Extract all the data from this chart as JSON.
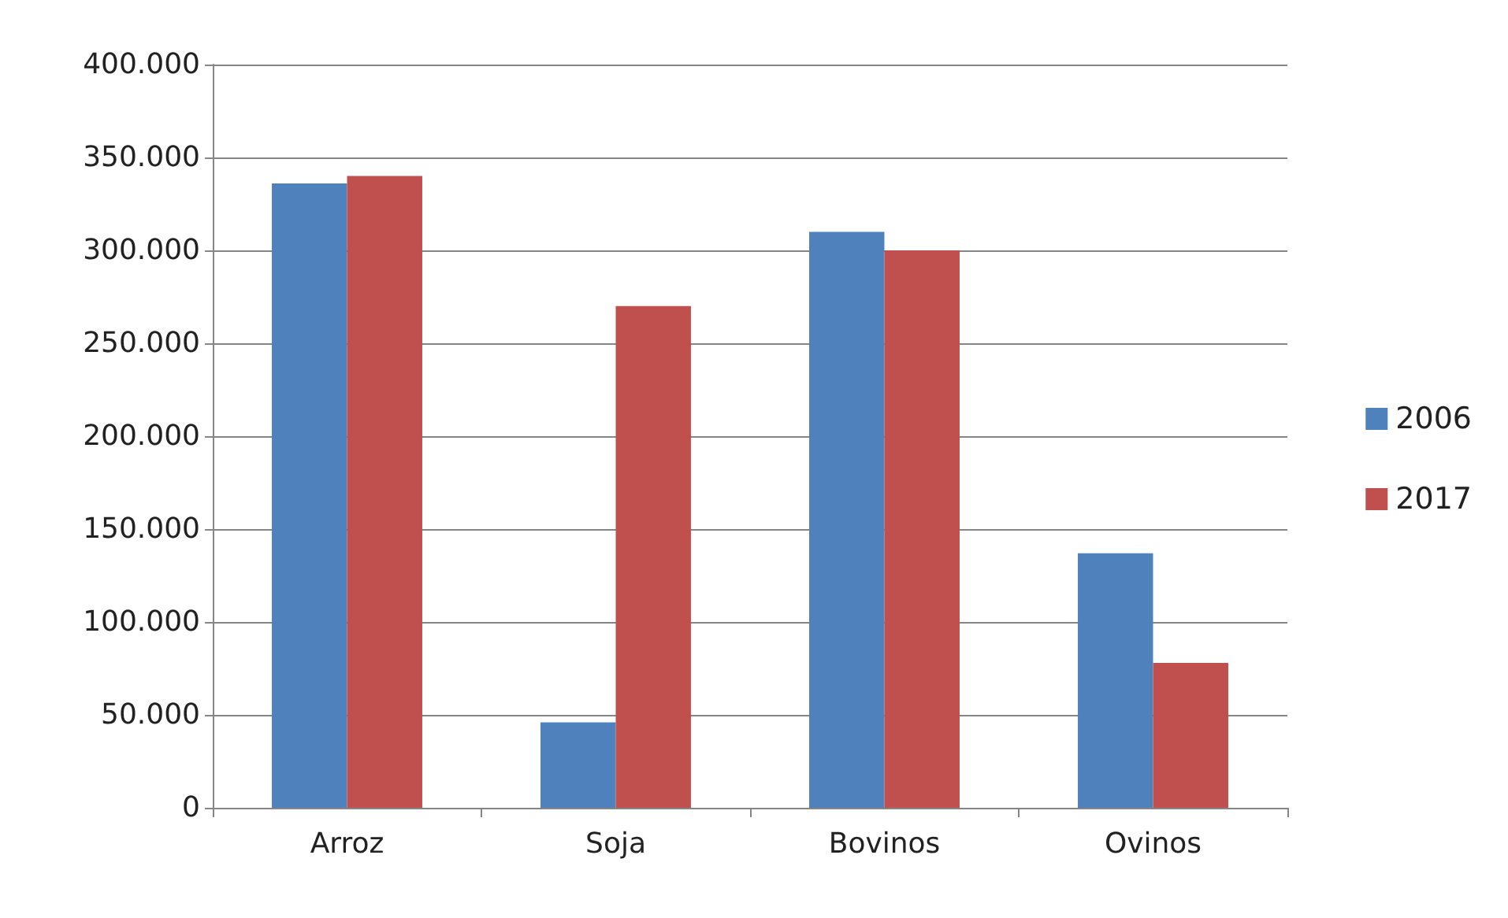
{
  "chart_data": {
    "type": "bar",
    "categories": [
      "Arroz",
      "Soja",
      "Bovinos",
      "Ovinos"
    ],
    "series": [
      {
        "name": "2006",
        "color": "#4f81bd",
        "values": [
          336000,
          46000,
          310000,
          137000
        ]
      },
      {
        "name": "2017",
        "color": "#c0504d",
        "values": [
          340000,
          270000,
          300000,
          78000
        ]
      }
    ],
    "ylim": [
      0,
      400000
    ],
    "yticks": [
      {
        "value": 0,
        "label": "0"
      },
      {
        "value": 50000,
        "label": "50.000"
      },
      {
        "value": 100000,
        "label": "100.000"
      },
      {
        "value": 150000,
        "label": "150.000"
      },
      {
        "value": 200000,
        "label": "200.000"
      },
      {
        "value": 250000,
        "label": "250.000"
      },
      {
        "value": 300000,
        "label": "300.000"
      },
      {
        "value": 350000,
        "label": "350.000"
      },
      {
        "value": 400000,
        "label": "400.000"
      }
    ],
    "grid": "y",
    "legend": "right"
  }
}
